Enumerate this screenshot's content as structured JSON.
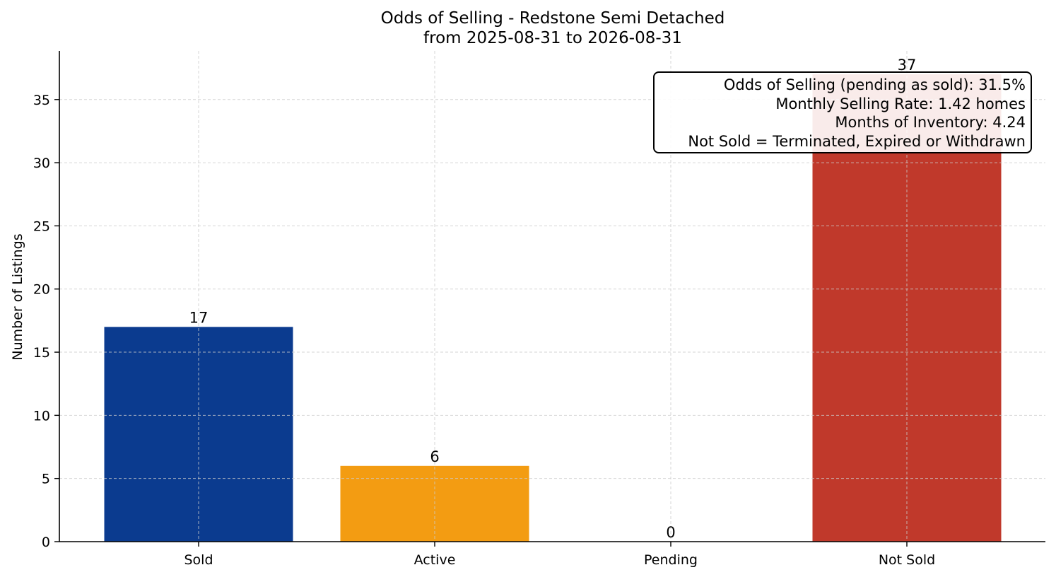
{
  "chart_data": {
    "type": "bar",
    "title": "Odds of Selling - Redstone Semi Detached",
    "subtitle": "from 2025-08-31 to 2026-08-31",
    "categories": [
      "Sold",
      "Active",
      "Pending",
      "Not Sold"
    ],
    "values": [
      17,
      6,
      0,
      37
    ],
    "value_labels": [
      "17",
      "6",
      "0",
      "37"
    ],
    "colors": [
      "#0b3b8f",
      "#f39c12",
      "#7f8c8d",
      "#c0392b"
    ],
    "xlabel": "",
    "ylabel": "Number of Listings",
    "ylim": [
      0,
      38.85
    ],
    "yticks": [
      0,
      5,
      10,
      15,
      20,
      25,
      30,
      35
    ],
    "grid": true,
    "annotation": {
      "placement": "top-right",
      "lines": [
        "Odds of Selling (pending as sold): 31.5%",
        "Monthly Selling Rate: 1.42 homes",
        "Months of Inventory: 4.24",
        "Not Sold = Terminated, Expired or Withdrawn"
      ]
    }
  }
}
